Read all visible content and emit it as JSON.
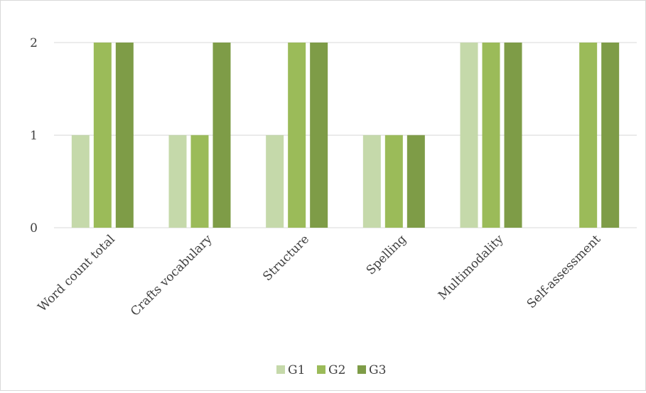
{
  "chart_data": {
    "type": "bar",
    "categories": [
      "Word count total",
      "Crafts vocabulary",
      "Structure",
      "Spelling",
      "Multimodality",
      "Self-assessment"
    ],
    "series": [
      {
        "name": "G1",
        "color": "#c5d9aa",
        "values": [
          1,
          1,
          1,
          1,
          2,
          0
        ]
      },
      {
        "name": "G2",
        "color": "#9bbb59",
        "values": [
          2,
          1,
          2,
          1,
          2,
          2
        ]
      },
      {
        "name": "G3",
        "color": "#7e9c47",
        "values": [
          2,
          2,
          2,
          1,
          2,
          2
        ]
      }
    ],
    "y_ticks": [
      "0",
      "1",
      "2"
    ],
    "ylim": [
      0,
      2
    ],
    "grid": true,
    "legend_position": "bottom",
    "title": "",
    "xlabel": "",
    "ylabel": ""
  }
}
